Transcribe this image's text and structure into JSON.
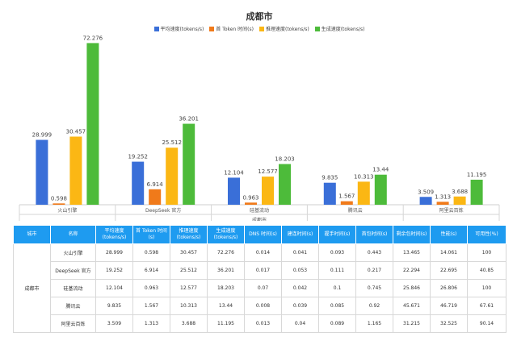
{
  "chart_data": {
    "type": "bar",
    "title": "成都市",
    "xlabel": "成都市",
    "categories": [
      "火山引擎",
      "DeepSeek 官方",
      "硅基流动",
      "腾讯云",
      "阿里云百炼"
    ],
    "series": [
      {
        "name": "平均速度(tokens/s)",
        "color": "#3a6fd8",
        "values": [
          28.999,
          19.252,
          12.104,
          9.835,
          3.509
        ]
      },
      {
        "name": "首 Token 时间(s)",
        "color": "#f07a1a",
        "values": [
          0.598,
          6.914,
          0.963,
          1.567,
          1.313
        ]
      },
      {
        "name": "推理速度(tokens/s)",
        "color": "#fbb714",
        "values": [
          30.457,
          25.512,
          12.577,
          10.313,
          3.688
        ]
      },
      {
        "name": "生成速度(tokens/s)",
        "color": "#4dbb3a",
        "values": [
          72.276,
          36.201,
          18.203,
          13.44,
          11.195
        ]
      }
    ],
    "ylim": [
      0,
      80
    ]
  },
  "table": {
    "headers": [
      "城市",
      "名称",
      "平均速度(tokens/s)",
      "首 Token 时间(s)",
      "推理速度(tokens/s)",
      "生成速度(tokens/s)",
      "DNS 时间(s)",
      "建连时间(s)",
      "握手时间(s)",
      "首包时间(s)",
      "剩余包时间(s)",
      "性能(s)",
      "可用性(%)"
    ],
    "city": "成都市",
    "rows": [
      [
        "火山引擎",
        "28.999",
        "0.598",
        "30.457",
        "72.276",
        "0.014",
        "0.041",
        "0.093",
        "0.443",
        "13.465",
        "14.061",
        "100"
      ],
      [
        "DeepSeek 官方",
        "19.252",
        "6.914",
        "25.512",
        "36.201",
        "0.017",
        "0.053",
        "0.111",
        "0.217",
        "22.294",
        "22.695",
        "40.85"
      ],
      [
        "硅基流动",
        "12.104",
        "0.963",
        "12.577",
        "18.203",
        "0.07",
        "0.042",
        "0.1",
        "0.745",
        "25.846",
        "26.806",
        "100"
      ],
      [
        "腾讯云",
        "9.835",
        "1.567",
        "10.313",
        "13.44",
        "0.008",
        "0.039",
        "0.085",
        "0.92",
        "45.671",
        "46.719",
        "67.61"
      ],
      [
        "阿里云百炼",
        "3.509",
        "1.313",
        "3.688",
        "11.195",
        "0.013",
        "0.04",
        "0.089",
        "1.165",
        "31.215",
        "32.525",
        "90.14"
      ]
    ]
  }
}
